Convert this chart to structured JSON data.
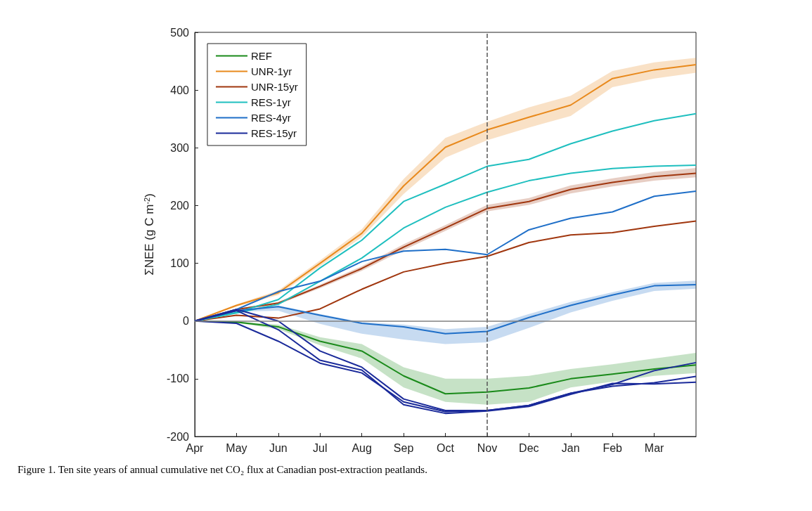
{
  "chart_data": {
    "type": "line",
    "ylabel": "ΣNEE (g C m$^{-2}$)",
    "annotations": [
      "Figure 1. Ten site years of annual cumulative net CO₂ flux at Canadian post-extraction peatlands."
    ],
    "categories": [
      "Apr",
      "May",
      "Jun",
      "Jul",
      "Aug",
      "Sep",
      "Oct",
      "Nov",
      "Dec",
      "Jan",
      "Feb",
      "Mar",
      null
    ],
    "series": [
      {
        "name": "REF",
        "color": "#1a8a1a",
        "values": [
          0,
          -2,
          -10,
          -35,
          -52,
          -95,
          -126,
          -123,
          -116,
          -100,
          -92,
          -83,
          -76
        ],
        "lower": [
          0,
          -3,
          -14,
          -42,
          -65,
          -115,
          -140,
          -145,
          -140,
          -115,
          -105,
          -95,
          -90
        ],
        "upper": [
          0,
          -1,
          -6,
          -28,
          -40,
          -80,
          -100,
          -100,
          -95,
          -83,
          -75,
          -65,
          -55
        ]
      },
      {
        "name": "UNR-1yr",
        "color": "#e8891c",
        "values": [
          0,
          27,
          49,
          100,
          152,
          234,
          301,
          331,
          353,
          374,
          420,
          435,
          444
        ],
        "lower": [
          0,
          25,
          45,
          95,
          145,
          220,
          283,
          313,
          335,
          355,
          405,
          420,
          430
        ],
        "upper": [
          0,
          29,
          53,
          105,
          159,
          246,
          317,
          345,
          370,
          390,
          433,
          448,
          456
        ]
      },
      {
        "name": "UNR-15yr",
        "color": "#a0360e",
        "values": [
          0,
          20,
          31,
          60,
          91,
          128,
          161,
          195,
          207,
          228,
          240,
          250,
          256
        ],
        "lower": [
          0,
          19,
          29,
          57,
          87,
          123,
          156,
          190,
          201,
          221,
          233,
          243,
          249
        ],
        "upper": [
          0,
          21,
          33,
          63,
          95,
          133,
          166,
          201,
          213,
          235,
          247,
          258,
          265
        ]
      },
      {
        "color": "#a0360e",
        "values": [
          0,
          10,
          5,
          21,
          55,
          85,
          100,
          112,
          136,
          149,
          153,
          164,
          173
        ]
      },
      {
        "name": "RES-1yr",
        "color": "#1fbfbf",
        "values": [
          0,
          15,
          37,
          92,
          140,
          207,
          237,
          268,
          280,
          307,
          329,
          347,
          359
        ]
      },
      {
        "color": "#1fbfbf",
        "values": [
          0,
          14,
          29,
          69,
          109,
          161,
          197,
          223,
          243,
          256,
          264,
          268,
          270
        ]
      },
      {
        "name": "RES-4yr",
        "color": "#1f6fc8",
        "values": [
          0,
          20,
          51,
          69,
          103,
          121,
          124,
          115,
          158,
          178,
          189,
          216,
          225
        ]
      },
      {
        "color": "#1f6fc8",
        "values": [
          0,
          18,
          25,
          10,
          -4,
          -10,
          -22,
          -18,
          6,
          27,
          45,
          61,
          63
        ],
        "lower": [
          0,
          16,
          18,
          -5,
          -22,
          -32,
          -40,
          -37,
          -12,
          15,
          35,
          52,
          56
        ],
        "upper": [
          0,
          20,
          27,
          12,
          -2,
          -6,
          -14,
          -10,
          12,
          33,
          50,
          66,
          70
        ]
      },
      {
        "name": "RES-15yr",
        "color": "#1a2a9a",
        "values": [
          0,
          -4,
          -35,
          -73,
          -90,
          -140,
          -157,
          -155,
          -146,
          -125,
          -110,
          -86,
          -72
        ]
      },
      {
        "color": "#1a2a9a",
        "values": [
          0,
          20,
          0,
          -52,
          -80,
          -135,
          -155,
          -155,
          -146,
          -125,
          -113,
          -107,
          -96
        ]
      },
      {
        "color": "#1a2a9a",
        "values": [
          0,
          18,
          -15,
          -68,
          -85,
          -145,
          -160,
          -156,
          -148,
          -127,
          -108,
          -109,
          -106
        ]
      }
    ],
    "ylim": [
      -200,
      500
    ],
    "yticks": [
      -200,
      -100,
      0,
      100,
      200,
      300,
      400,
      500
    ],
    "ref_lines": [
      {
        "axis": "x",
        "value": "Nov",
        "color": "#555555",
        "line_style": "dashed"
      },
      {
        "axis": "y",
        "value": 0,
        "color": "#808080",
        "line_style": "solid"
      }
    ],
    "grid": false,
    "legend": "top left",
    "marker": "none",
    "line_style": "solid"
  }
}
